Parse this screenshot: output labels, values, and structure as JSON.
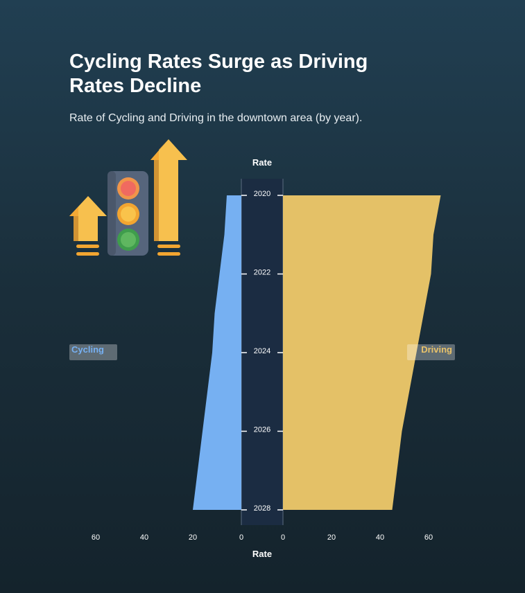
{
  "title": "Cycling Rates Surge as Driving Rates Decline",
  "subtitle": "Rate of Cycling and Driving in the downtown area (by year).",
  "colors": {
    "cycling": "#76b0f2",
    "driving": "#e4c167",
    "center_band": "#1b2c42",
    "arrow": "#f7c04e",
    "arrow_shade": "#f2a531",
    "traffic_light_body": "#56657c",
    "light_red": "#f06a60",
    "light_yellow": "#f9c34b",
    "light_green": "#5fb760"
  },
  "icons": [
    "up-arrow-icon",
    "traffic-light-icon",
    "up-arrow-icon"
  ],
  "chart_data": {
    "type": "area",
    "layout": "butterfly",
    "x": [
      2020,
      2021,
      2022,
      2023,
      2024,
      2025,
      2026,
      2027,
      2028
    ],
    "year_ticks": [
      "2020",
      "2022",
      "2024",
      "2026",
      "2028"
    ],
    "series": [
      {
        "name": "Cycling",
        "side": "left",
        "values": [
          6,
          7,
          9,
          11,
          12,
          14,
          16,
          18,
          20
        ]
      },
      {
        "name": "Driving",
        "side": "right",
        "values": [
          65,
          62,
          61,
          58,
          55,
          52,
          49,
          47,
          45
        ]
      }
    ],
    "xlabel": "Rate",
    "top_label": "Rate",
    "value_ticks_left": [
      "60",
      "40",
      "20",
      "0"
    ],
    "value_ticks_right": [
      "0",
      "20",
      "40",
      "60"
    ],
    "xlim": [
      0,
      70
    ],
    "ylim": [
      2020,
      2028
    ],
    "legend": "left-and-right"
  }
}
